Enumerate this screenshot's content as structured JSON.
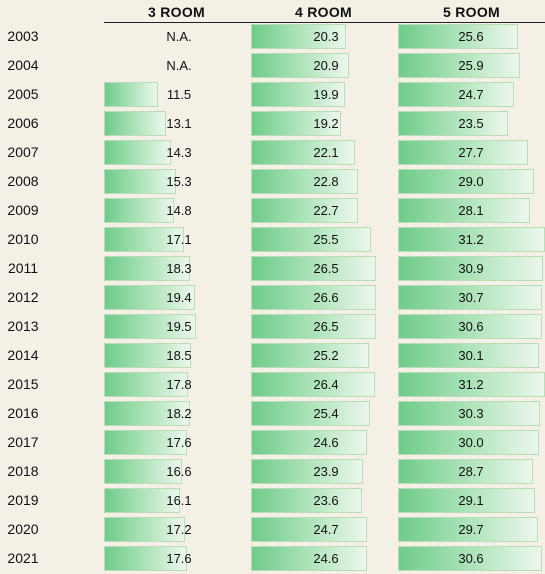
{
  "chart_data": {
    "type": "table",
    "columns": [
      "3 ROOM",
      "4 ROOM",
      "5 ROOM"
    ],
    "rows": [
      {
        "year": "2003",
        "values": [
          "N.A.",
          "20.3",
          "25.6"
        ]
      },
      {
        "year": "2004",
        "values": [
          "N.A.",
          "20.9",
          "25.9"
        ]
      },
      {
        "year": "2005",
        "values": [
          "11.5",
          "19.9",
          "24.7"
        ]
      },
      {
        "year": "2006",
        "values": [
          "13.1",
          "19.2",
          "23.5"
        ]
      },
      {
        "year": "2007",
        "values": [
          "14.3",
          "22.1",
          "27.7"
        ]
      },
      {
        "year": "2008",
        "values": [
          "15.3",
          "22.8",
          "29.0"
        ]
      },
      {
        "year": "2009",
        "values": [
          "14.8",
          "22.7",
          "28.1"
        ]
      },
      {
        "year": "2010",
        "values": [
          "17.1",
          "25.5",
          "31.2"
        ]
      },
      {
        "year": "2011",
        "values": [
          "18.3",
          "26.5",
          "30.9"
        ]
      },
      {
        "year": "2012",
        "values": [
          "19.4",
          "26.6",
          "30.7"
        ]
      },
      {
        "year": "2013",
        "values": [
          "19.5",
          "26.5",
          "30.6"
        ]
      },
      {
        "year": "2014",
        "values": [
          "18.5",
          "25.2",
          "30.1"
        ]
      },
      {
        "year": "2015",
        "values": [
          "17.8",
          "26.4",
          "31.2"
        ]
      },
      {
        "year": "2016",
        "values": [
          "18.2",
          "25.4",
          "30.3"
        ]
      },
      {
        "year": "2017",
        "values": [
          "17.6",
          "24.6",
          "30.0"
        ]
      },
      {
        "year": "2018",
        "values": [
          "16.6",
          "23.9",
          "28.7"
        ]
      },
      {
        "year": "2019",
        "values": [
          "16.1",
          "23.6",
          "29.1"
        ]
      },
      {
        "year": "2020",
        "values": [
          "17.2",
          "24.7",
          "29.7"
        ]
      },
      {
        "year": "2021",
        "values": [
          "17.6",
          "24.6",
          "30.6"
        ]
      }
    ],
    "colors": {
      "bar_start": "#6fcb8a",
      "bar_end": "#ecf7ec",
      "bar_border": "#b9dcb9",
      "background": "#f4f0e6"
    }
  }
}
